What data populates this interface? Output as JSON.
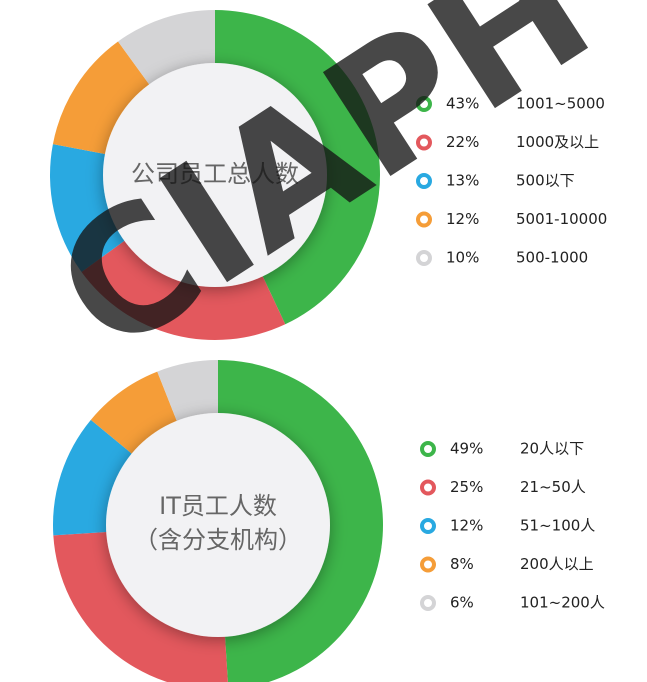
{
  "watermark": "CIAPH",
  "chart_data": [
    {
      "type": "donut",
      "title": "公司员工总人数",
      "categories": [
        "1001~5000",
        "1000及以上",
        "500以下",
        "5001-10000",
        "500-1000"
      ],
      "values": [
        43,
        22,
        13,
        12,
        10
      ],
      "value_labels": [
        "43%",
        "22%",
        "13%",
        "12%",
        "10%"
      ],
      "colors": [
        "#3db54a",
        "#e3585d",
        "#29a9e1",
        "#f59d38",
        "#d4d4d6"
      ]
    },
    {
      "type": "donut",
      "title": "IT员工人数",
      "subtitle": "（含分支机构）",
      "categories": [
        "20人以下",
        "21~50人",
        "51~100人",
        "200人以上",
        "101~200人"
      ],
      "values": [
        49,
        25,
        12,
        8,
        6
      ],
      "value_labels": [
        "49%",
        "25%",
        "12%",
        "8%",
        "6%"
      ],
      "colors": [
        "#3db54a",
        "#e3585d",
        "#29a9e1",
        "#f59d38",
        "#d4d4d6"
      ]
    }
  ]
}
